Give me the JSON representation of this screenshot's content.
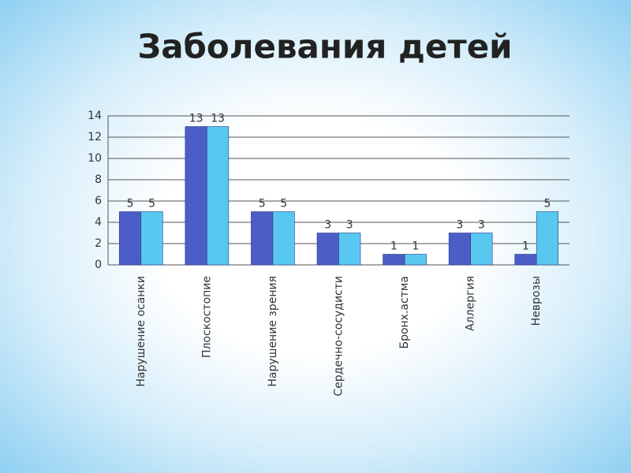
{
  "chart_data": {
    "type": "bar",
    "title": "Заболевания детей",
    "categories": [
      "Нарушение осанки",
      "Плоскостопие",
      "Нарушение зрения",
      "Сердечно-сосудисти",
      "Бронх.астма",
      "Аллергия",
      "Неврозы"
    ],
    "series": [
      {
        "color": "#4c5dc6",
        "values": [
          5,
          13,
          5,
          3,
          1,
          3,
          1
        ]
      },
      {
        "color": "#58c8f0",
        "values": [
          5,
          13,
          5,
          3,
          1,
          3,
          5
        ]
      }
    ],
    "ylim": [
      0,
      14
    ],
    "yticks": [
      0,
      2,
      4,
      6,
      8,
      10,
      12,
      14
    ],
    "grid": true
  }
}
